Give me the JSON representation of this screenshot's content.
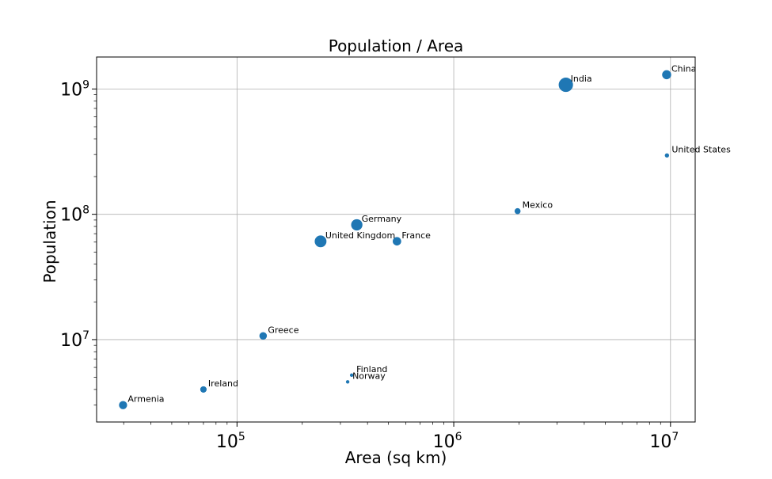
{
  "chart_data": {
    "type": "scatter",
    "title": "Population / Area",
    "xlabel": "Area (sq km)",
    "ylabel": "Population",
    "xscale": "log",
    "yscale": "log",
    "xlim": [
      22500,
      13000000
    ],
    "ylim": [
      2200000,
      1800000000
    ],
    "grid": true,
    "marker_color": "#1f77b4",
    "x_ticks": [
      {
        "base": "10",
        "exp": "5",
        "value": 100000
      },
      {
        "base": "10",
        "exp": "6",
        "value": 1000000
      },
      {
        "base": "10",
        "exp": "7",
        "value": 10000000
      }
    ],
    "y_ticks": [
      {
        "base": "10",
        "exp": "7",
        "value": 10000000
      },
      {
        "base": "10",
        "exp": "8",
        "value": 100000000
      },
      {
        "base": "10",
        "exp": "9",
        "value": 1000000000
      }
    ],
    "points": [
      {
        "name": "Armenia",
        "area": 29800,
        "population": 3000000,
        "size": 2.6
      },
      {
        "name": "Ireland",
        "area": 70000,
        "population": 4000000,
        "size": 1.6
      },
      {
        "name": "Greece",
        "area": 132000,
        "population": 10700000,
        "size": 2.2
      },
      {
        "name": "United Kingdom",
        "area": 243000,
        "population": 60800000,
        "size": 5.4
      },
      {
        "name": "Germany",
        "area": 357000,
        "population": 82400000,
        "size": 5.0
      },
      {
        "name": "France",
        "area": 547000,
        "population": 60900000,
        "size": 2.8
      },
      {
        "name": "Finland",
        "area": 338000,
        "population": 5200000,
        "size": 0.4
      },
      {
        "name": "Norway",
        "area": 324000,
        "population": 4600000,
        "size": 0.3
      },
      {
        "name": "Mexico",
        "area": 1970000,
        "population": 106000000,
        "size": 1.4
      },
      {
        "name": "India",
        "area": 3290000,
        "population": 1080000000,
        "size": 8.0
      },
      {
        "name": "China",
        "area": 9600000,
        "population": 1300000000,
        "size": 3.2
      },
      {
        "name": "United States",
        "area": 9630000,
        "population": 295000000,
        "size": 0.7
      }
    ]
  }
}
